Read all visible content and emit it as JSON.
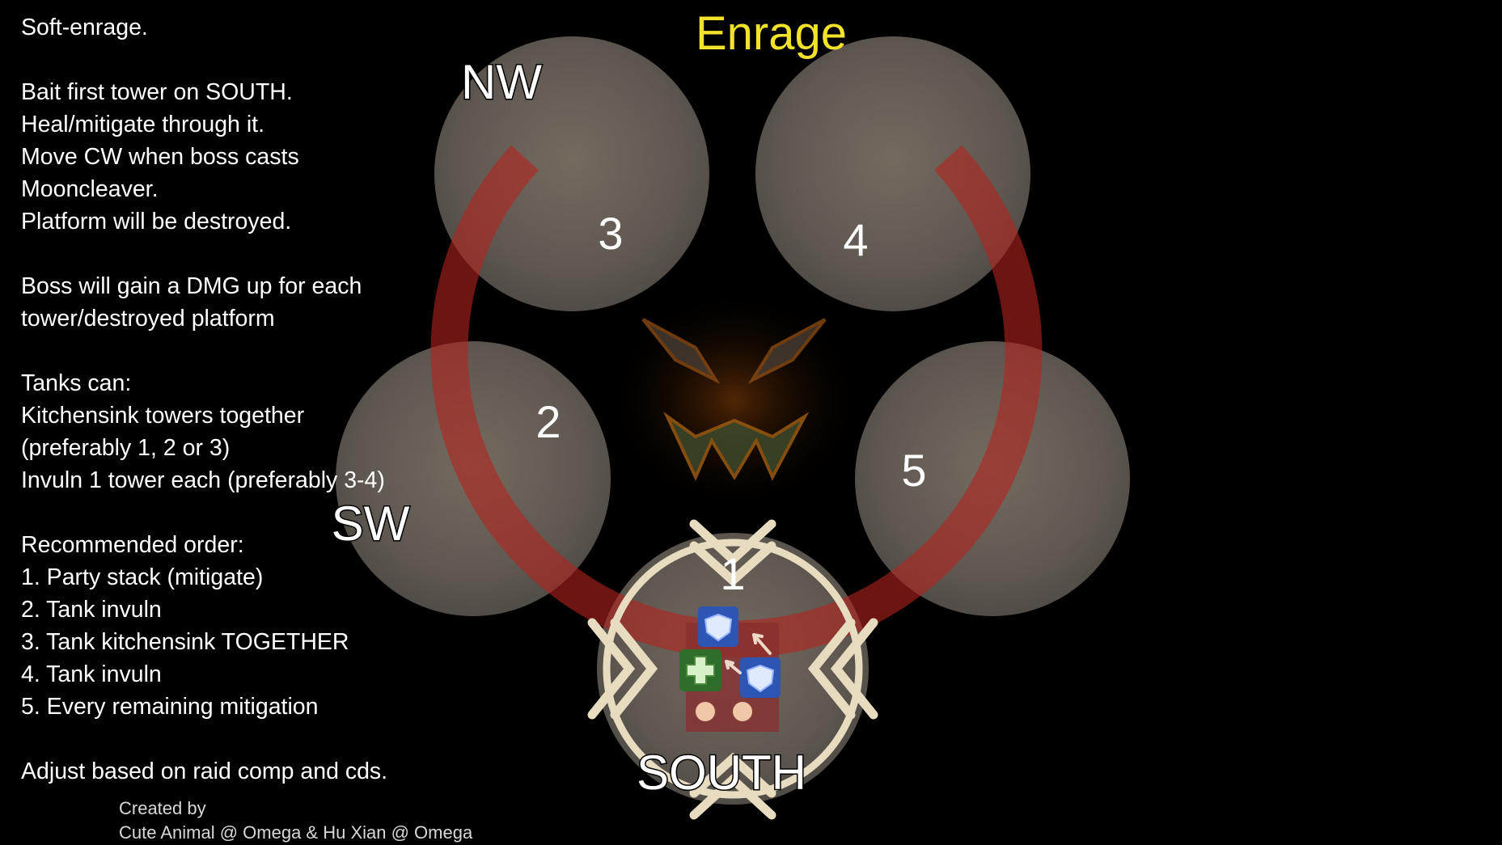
{
  "title": "Enrage",
  "notes": [
    "Soft-enrage.",
    "",
    "Bait first tower on SOUTH.",
    "Heal/mitigate through it.",
    "Move CW when boss casts",
    "Mooncleaver.",
    "Platform will be destroyed.",
    "",
    "Boss will gain a DMG up for each",
    "tower/destroyed platform",
    "",
    "Tanks can:",
    "Kitchensink towers together",
    "(preferably 1, 2 or 3)",
    "Invuln 1 tower each (preferably 3-4)",
    "",
    "Recommended order:",
    "1. Party stack (mitigate)",
    "2. Tank invuln",
    "3. Tank kitchensink TOGETHER",
    "4. Tank invuln",
    "5. Every remaining mitigation",
    "",
    "Adjust based on raid comp and cds."
  ],
  "credits": {
    "line1": "Created by",
    "line2": "Cute Animal @ Omega & Hu Xian @ Omega"
  },
  "platforms": {
    "nw": {
      "number": "3",
      "direction": "NW"
    },
    "ne": {
      "number": "4"
    },
    "sw": {
      "number": "2",
      "direction": "SW"
    },
    "se": {
      "number": "5"
    },
    "south": {
      "number": "1",
      "direction": "SOUTH"
    }
  },
  "party_icons": [
    "tank-icon",
    "ranged-icon",
    "healer-icon",
    "ranged-icon",
    "tank-icon",
    "melee-icon",
    "melee-icon"
  ],
  "colors": {
    "title": "#f2e22c",
    "arc": "#b4231e",
    "platform": "#6e6860",
    "markers": "#e8dcc0",
    "tank": "#2d55b4",
    "healer": "#2f6e2a",
    "dps": "#8a2e2e"
  }
}
